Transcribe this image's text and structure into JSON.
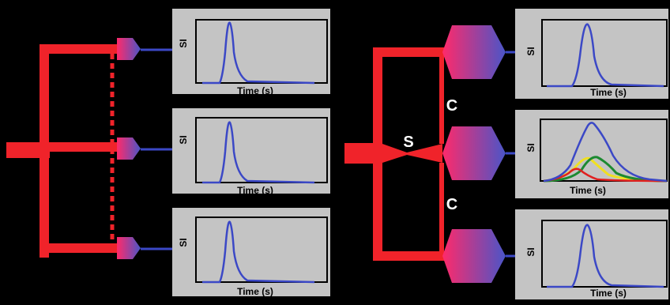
{
  "left": {
    "panels": [
      {
        "y_label": "SI",
        "x_label": "Time (s)"
      },
      {
        "y_label": "SI",
        "x_label": "Time (s)"
      },
      {
        "y_label": "SI",
        "x_label": "Time (s)"
      }
    ]
  },
  "right": {
    "stenosis_label": "S",
    "collateral_labels": [
      "C",
      "C"
    ],
    "panels": [
      {
        "y_label": "SI",
        "x_label": "Time (s)"
      },
      {
        "y_label": "SI",
        "x_label": "Time (s)"
      },
      {
        "y_label": "SI",
        "x_label": "Time (s)"
      }
    ]
  },
  "colors": {
    "background": "#000000",
    "vessel": "#f0232a",
    "gradient_start": "#ff2a6a",
    "gradient_end": "#4a55c8",
    "curve": "#3b48c6",
    "panel_bg": "#c4c4c4",
    "curve_yellow": "#f0e020",
    "curve_green": "#1c8a30",
    "curve_red": "#e02020"
  }
}
